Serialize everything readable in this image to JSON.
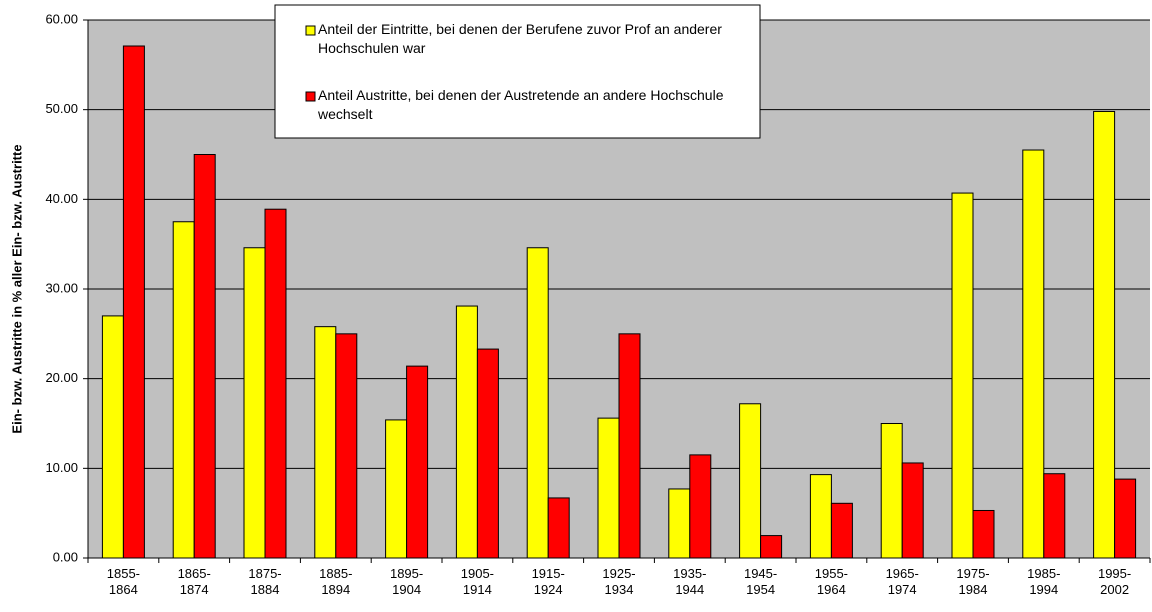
{
  "chart_data": {
    "type": "bar",
    "y_label": "Ein- bzw. Austritte in % aller Ein- bzw. Austritte",
    "categories": [
      "1855-1864",
      "1865-1874",
      "1875-1884",
      "1885-1894",
      "1895-1904",
      "1905-1914",
      "1915-1924",
      "1925-1934",
      "1935-1944",
      "1945-1954",
      "1955-1964",
      "1965-1974",
      "1975-1984",
      "1985-1994",
      "1995-2002"
    ],
    "series": [
      {
        "name": "Anteil der Eintritte, bei denen der Berufene zuvor Prof an anderer Hochschulen war",
        "color": "#ffff00",
        "values": [
          27.0,
          37.5,
          34.6,
          25.8,
          15.4,
          28.1,
          34.6,
          15.6,
          7.7,
          17.2,
          9.3,
          15.0,
          40.7,
          45.5,
          49.8
        ]
      },
      {
        "name": "Anteil Austritte, bei denen der Austretende an andere Hochschule wechselt",
        "color": "#ff0000",
        "values": [
          57.1,
          45.0,
          38.9,
          25.0,
          21.4,
          23.3,
          6.7,
          25.0,
          11.5,
          2.5,
          6.1,
          10.6,
          5.3,
          9.4,
          8.8
        ]
      }
    ],
    "ylim": [
      0,
      60
    ],
    "yticks": [
      {
        "value": 0,
        "label": "0.00"
      },
      {
        "value": 10,
        "label": "10.00"
      },
      {
        "value": 20,
        "label": "20.00"
      },
      {
        "value": 30,
        "label": "30.00"
      },
      {
        "value": 40,
        "label": "40.00"
      },
      {
        "value": 50,
        "label": "50.00"
      },
      {
        "value": 60,
        "label": "60.00"
      }
    ],
    "grid": true,
    "legend": "top"
  }
}
